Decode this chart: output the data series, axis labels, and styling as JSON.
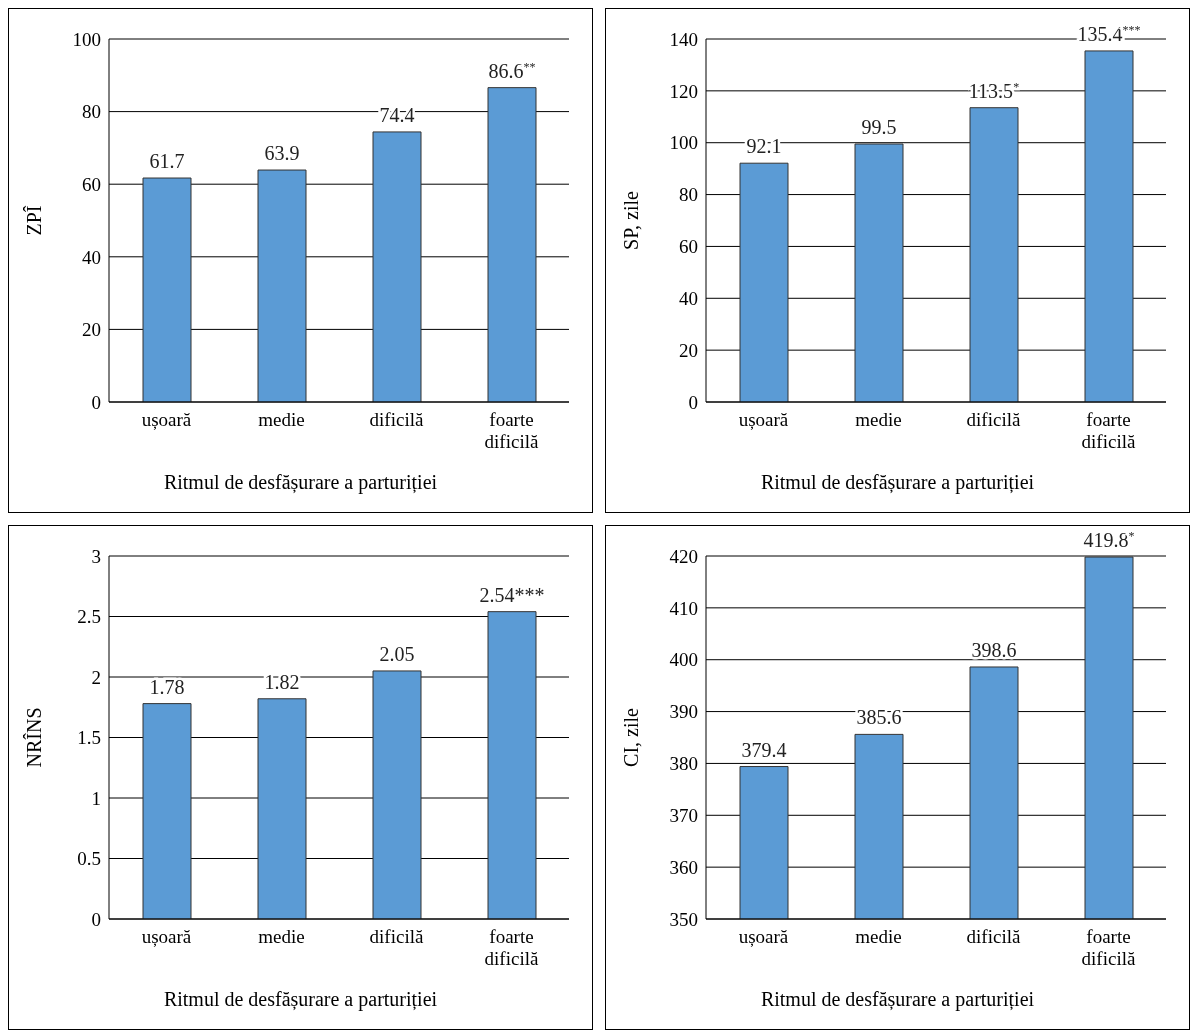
{
  "chart_data": [
    {
      "type": "bar",
      "categories": [
        "ușoară",
        "medie",
        "dificilă",
        "foarte dificilă"
      ],
      "values": [
        61.7,
        63.9,
        74.4,
        86.6
      ],
      "value_labels": [
        "61.7",
        "63.9",
        "74.4",
        "86.6$^{**}$"
      ],
      "color": "#5b9bd5",
      "ylabel": "ZPÎ",
      "xlabel": "Ritmul de desfășurare a parturiției",
      "ylim": [
        0,
        100
      ],
      "yticks": [
        0,
        20,
        40,
        60,
        80,
        100
      ],
      "grid": "y",
      "legend": false
    },
    {
      "type": "bar",
      "categories": [
        "ușoară",
        "medie",
        "dificilă",
        "foarte dificilă"
      ],
      "values": [
        92.1,
        99.5,
        113.5,
        135.4
      ],
      "value_labels": [
        "92.1",
        "99.5",
        "113.5$^{*}$",
        "135.4$^{***}$"
      ],
      "color": "#5b9bd5",
      "ylabel": "SP, zile",
      "xlabel": "Ritmul de desfășurare a parturiției",
      "ylim": [
        0,
        140
      ],
      "yticks": [
        0,
        20,
        40,
        60,
        80,
        100,
        120,
        140
      ],
      "grid": "y",
      "legend": false
    },
    {
      "type": "bar",
      "categories": [
        "ușoară",
        "medie",
        "dificilă",
        "foarte dificilă"
      ],
      "values": [
        1.78,
        1.82,
        2.05,
        2.54
      ],
      "value_labels": [
        "1.78",
        "1.82",
        "2.05",
        "2.54***"
      ],
      "color": "#5b9bd5",
      "ylabel": "NRÎNS",
      "xlabel": "Ritmul de desfășurare a parturiției",
      "ylim": [
        0,
        3
      ],
      "yticks": [
        0,
        0.5,
        1,
        1.5,
        2,
        2.5,
        3
      ],
      "grid": "y",
      "legend": false
    },
    {
      "type": "bar",
      "categories": [
        "ușoară",
        "medie",
        "dificilă",
        "foarte dificilă"
      ],
      "values": [
        379.4,
        385.6,
        398.6,
        419.8
      ],
      "value_labels": [
        "379.4",
        "385.6",
        "398.6",
        "419.8$^{*}$"
      ],
      "color": "#5b9bd5",
      "ylabel": "CI, zile",
      "xlabel": "Ritmul de desfășurare a parturiției",
      "ylim": [
        350,
        420
      ],
      "yticks": [
        350,
        360,
        370,
        380,
        390,
        400,
        410,
        420
      ],
      "grid": "y",
      "legend": false
    }
  ]
}
